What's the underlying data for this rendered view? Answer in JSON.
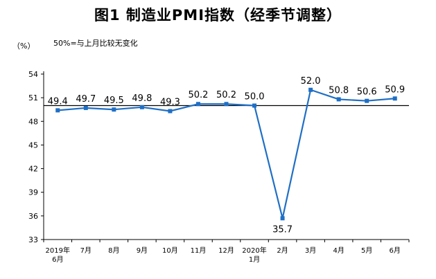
{
  "chart_data": {
    "type": "line",
    "title": "图1  制造业PMI指数（经季节调整）",
    "unit_label": "（%）",
    "note": "50%=与上月比较无变化",
    "categories": [
      "2019年\n6月",
      "7月",
      "8月",
      "9月",
      "10月",
      "11月",
      "12月",
      "2020年\n1月",
      "2月",
      "3月",
      "4月",
      "5月",
      "6月"
    ],
    "values": [
      49.4,
      49.7,
      49.5,
      49.8,
      49.3,
      50.2,
      50.2,
      50.0,
      35.7,
      52.0,
      50.8,
      50.6,
      50.9
    ],
    "data_labels": [
      "49.4",
      "49.7",
      "49.5",
      "49.8",
      "49.3",
      "50.2",
      "50.2",
      "50.0",
      "35.7",
      "52.0",
      "50.8",
      "50.6",
      "50.9"
    ],
    "y_ticks": [
      "54",
      "51",
      "48",
      "45",
      "42",
      "39",
      "36",
      "33"
    ],
    "ylim": [
      33,
      54
    ],
    "reference_line": 50,
    "grid": false,
    "colors": {
      "series": "#1f6fc5",
      "axis": "#000000"
    }
  }
}
